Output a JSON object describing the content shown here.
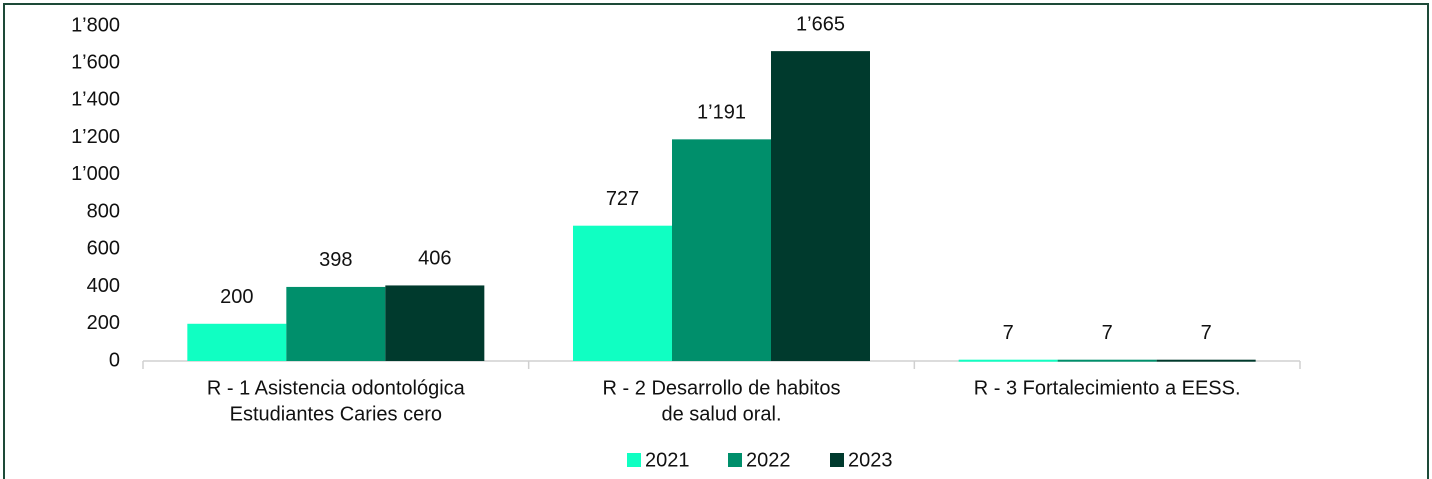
{
  "chart_data": {
    "type": "bar",
    "categories": [
      [
        "R - 1 Asistencia odontológica",
        "Estudiantes Caries cero"
      ],
      [
        "R - 2 Desarrollo de habitos",
        "de salud oral."
      ],
      [
        "R - 3 Fortalecimiento a EESS."
      ]
    ],
    "series": [
      {
        "name": "2021",
        "color": "#10ffc2",
        "values": [
          200,
          727,
          7
        ],
        "value_labels": [
          "200",
          "727",
          "7"
        ]
      },
      {
        "name": "2022",
        "color": "#008f6b",
        "values": [
          398,
          1191,
          7
        ],
        "value_labels": [
          "398",
          "1’191",
          "7"
        ]
      },
      {
        "name": "2023",
        "color": "#003a2d",
        "values": [
          406,
          1665,
          7
        ],
        "value_labels": [
          "406",
          "1’665",
          "7"
        ]
      }
    ],
    "ylim": [
      0,
      1800
    ],
    "yticks": [
      0,
      200,
      400,
      600,
      800,
      {
        "value": 1000,
        "label": "1’000"
      },
      {
        "value": 1200,
        "label": "1’200"
      },
      {
        "value": 1400,
        "label": "1’400"
      },
      {
        "value": 1600,
        "label": "1’600"
      },
      {
        "value": 1800,
        "label": "1’800"
      }
    ],
    "legend": "bottom"
  }
}
